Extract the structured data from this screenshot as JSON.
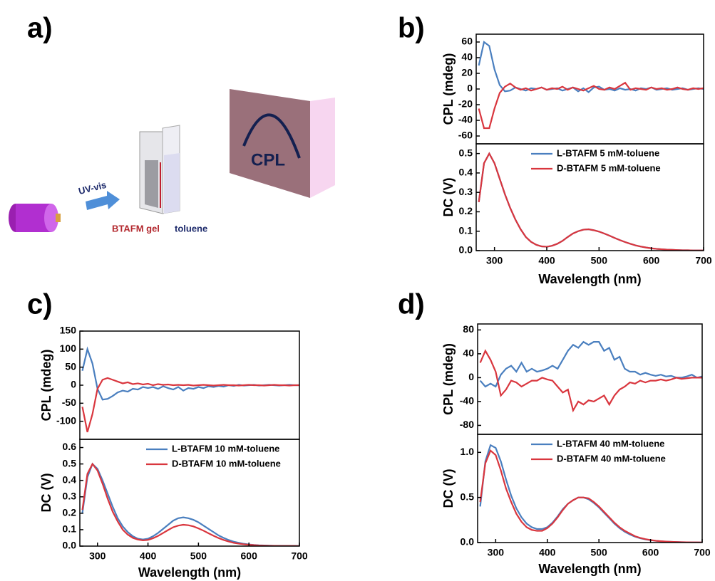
{
  "diagram": {
    "arrow_label": "UV-vis",
    "gel_label": "BTAFM gel",
    "solvent_label": "toluene",
    "screen_label": "CPL",
    "panel_label": "a)"
  },
  "chart_data": [
    {
      "type": "line",
      "label": "b)",
      "ylabel": "CPL (mdeg)",
      "xlim": [
        265,
        700
      ],
      "ylim": [
        -70,
        70
      ],
      "yticks": [
        -60,
        -40,
        -20,
        0,
        20,
        40,
        60
      ],
      "x": [
        270,
        280,
        290,
        300,
        310,
        320,
        330,
        340,
        350,
        360,
        370,
        380,
        390,
        400,
        410,
        420,
        430,
        440,
        450,
        460,
        470,
        480,
        490,
        500,
        510,
        520,
        530,
        540,
        550,
        560,
        570,
        580,
        590,
        600,
        610,
        620,
        630,
        640,
        650,
        660,
        670,
        680,
        690,
        700
      ],
      "series": [
        {
          "name": "L-BTAFM 5 mM-toluene",
          "color": "#4a7fbf",
          "values": [
            30,
            60,
            55,
            25,
            5,
            -3,
            -2,
            2,
            0,
            -2,
            1,
            0,
            2,
            -1,
            0,
            1,
            -2,
            0,
            2,
            -3,
            1,
            -4,
            2,
            3,
            -1,
            0,
            -2,
            1,
            -1,
            0,
            -2,
            1,
            0,
            2,
            -1,
            0,
            1,
            -1,
            0,
            1,
            -1,
            0,
            1,
            0
          ]
        },
        {
          "name": "D-BTAFM 5 mM-toluene",
          "color": "#d9363e",
          "values": [
            -25,
            -50,
            -50,
            -25,
            -5,
            3,
            7,
            2,
            -1,
            1,
            -2,
            0,
            2,
            -1,
            1,
            0,
            3,
            -1,
            2,
            0,
            -2,
            1,
            4,
            0,
            -1,
            2,
            0,
            4,
            8,
            -1,
            1,
            0,
            -1,
            2,
            0,
            1,
            -1,
            0,
            2,
            0,
            -1,
            1,
            0,
            1
          ]
        }
      ]
    },
    {
      "type": "line",
      "ylabel": "DC (V)",
      "xlabel": "Wavelength (nm)",
      "legend": "upper right",
      "xlim": [
        265,
        700
      ],
      "ylim": [
        0,
        0.55
      ],
      "xticks": [
        300,
        400,
        500,
        600,
        700
      ],
      "yticks": [
        {
          "value": 0,
          "label": "0.0"
        },
        0.1,
        0.2,
        0.3,
        0.4,
        0.5
      ],
      "x": [
        270,
        280,
        290,
        300,
        310,
        320,
        330,
        340,
        350,
        360,
        370,
        380,
        390,
        400,
        410,
        420,
        430,
        440,
        450,
        460,
        470,
        480,
        490,
        500,
        510,
        520,
        530,
        540,
        550,
        560,
        570,
        580,
        590,
        600,
        610,
        620,
        630,
        640,
        650,
        660,
        670,
        680,
        690,
        700
      ],
      "series": [
        {
          "name": "L-BTAFM 5 mM-toluene",
          "color": "#4a7fbf",
          "values": [
            0.25,
            0.45,
            0.5,
            0.45,
            0.37,
            0.29,
            0.22,
            0.16,
            0.11,
            0.07,
            0.045,
            0.03,
            0.022,
            0.02,
            0.025,
            0.035,
            0.05,
            0.07,
            0.088,
            0.1,
            0.108,
            0.11,
            0.105,
            0.098,
            0.088,
            0.077,
            0.065,
            0.054,
            0.044,
            0.035,
            0.027,
            0.021,
            0.016,
            0.012,
            0.009,
            0.007,
            0.005,
            0.004,
            0.003,
            0.002,
            0.002,
            0.001,
            0.001,
            0.001
          ]
        },
        {
          "name": "D-BTAFM 5 mM-toluene",
          "color": "#d9363e",
          "values": [
            0.25,
            0.45,
            0.5,
            0.45,
            0.37,
            0.29,
            0.22,
            0.16,
            0.11,
            0.07,
            0.045,
            0.03,
            0.022,
            0.02,
            0.025,
            0.035,
            0.05,
            0.07,
            0.088,
            0.1,
            0.108,
            0.11,
            0.105,
            0.098,
            0.088,
            0.077,
            0.065,
            0.054,
            0.044,
            0.035,
            0.027,
            0.021,
            0.016,
            0.012,
            0.009,
            0.007,
            0.005,
            0.004,
            0.003,
            0.002,
            0.002,
            0.001,
            0.001,
            0.001
          ]
        }
      ]
    },
    {
      "type": "line",
      "label": "c)",
      "ylabel": "CPL (mdeg)",
      "xlim": [
        265,
        700
      ],
      "ylim": [
        -150,
        150
      ],
      "yticks": [
        -100,
        -50,
        0,
        50,
        100,
        150
      ],
      "x": [
        270,
        280,
        290,
        300,
        310,
        320,
        330,
        340,
        350,
        360,
        370,
        380,
        390,
        400,
        410,
        420,
        430,
        440,
        450,
        460,
        470,
        480,
        490,
        500,
        510,
        520,
        530,
        540,
        550,
        560,
        570,
        580,
        590,
        600,
        610,
        620,
        630,
        640,
        650,
        660,
        670,
        680,
        690,
        700
      ],
      "series": [
        {
          "name": "L-BTAFM 10 mM-toluene",
          "color": "#4a7fbf",
          "values": [
            40,
            100,
            60,
            -10,
            -40,
            -38,
            -30,
            -20,
            -15,
            -18,
            -10,
            -12,
            -5,
            -8,
            -5,
            -10,
            -3,
            -8,
            -12,
            -5,
            -15,
            -8,
            -10,
            -5,
            -8,
            -3,
            -5,
            -2,
            -4,
            0,
            -2,
            1,
            -1,
            0,
            1,
            -1,
            0,
            1,
            0,
            -1,
            0,
            1,
            0,
            0
          ]
        },
        {
          "name": "D-BTAFM 10 mM-toluene",
          "color": "#d9363e",
          "values": [
            -60,
            -130,
            -80,
            -10,
            15,
            20,
            15,
            10,
            5,
            8,
            3,
            5,
            2,
            4,
            0,
            3,
            1,
            2,
            0,
            1,
            0,
            1,
            -1,
            0,
            1,
            0,
            -1,
            0,
            1,
            0,
            0,
            -1,
            0,
            1,
            0,
            0,
            -1,
            0,
            1,
            0,
            0,
            -1,
            0,
            0
          ]
        }
      ]
    },
    {
      "type": "line",
      "ylabel": "DC (V)",
      "xlabel": "Wavelength (nm)",
      "legend": "upper right",
      "xlim": [
        265,
        700
      ],
      "ylim": [
        0,
        0.65
      ],
      "xticks": [
        300,
        400,
        500,
        600,
        700
      ],
      "yticks": [
        {
          "value": 0,
          "label": "0.0"
        },
        0.1,
        0.2,
        0.3,
        0.4,
        0.5,
        0.6
      ],
      "x": [
        270,
        280,
        290,
        300,
        310,
        320,
        330,
        340,
        350,
        360,
        370,
        380,
        390,
        400,
        410,
        420,
        430,
        440,
        450,
        460,
        470,
        480,
        490,
        500,
        510,
        520,
        530,
        540,
        550,
        560,
        570,
        580,
        590,
        600,
        610,
        620,
        630,
        640,
        650,
        660,
        670,
        680,
        690,
        700
      ],
      "series": [
        {
          "name": "L-BTAFM 10 mM-toluene",
          "color": "#4a7fbf",
          "values": [
            0.2,
            0.42,
            0.5,
            0.47,
            0.4,
            0.32,
            0.24,
            0.17,
            0.12,
            0.085,
            0.06,
            0.045,
            0.04,
            0.045,
            0.06,
            0.08,
            0.105,
            0.13,
            0.155,
            0.17,
            0.175,
            0.17,
            0.16,
            0.145,
            0.125,
            0.105,
            0.085,
            0.065,
            0.05,
            0.037,
            0.027,
            0.02,
            0.014,
            0.01,
            0.007,
            0.005,
            0.004,
            0.003,
            0.002,
            0.002,
            0.001,
            0.001,
            0.001,
            0.001
          ]
        },
        {
          "name": "D-BTAFM 10 mM-toluene",
          "color": "#d9363e",
          "values": [
            0.22,
            0.44,
            0.5,
            0.46,
            0.38,
            0.29,
            0.21,
            0.15,
            0.1,
            0.07,
            0.05,
            0.04,
            0.035,
            0.038,
            0.048,
            0.062,
            0.08,
            0.098,
            0.115,
            0.125,
            0.13,
            0.127,
            0.12,
            0.108,
            0.094,
            0.078,
            0.063,
            0.049,
            0.037,
            0.028,
            0.02,
            0.015,
            0.011,
            0.008,
            0.006,
            0.004,
            0.003,
            0.002,
            0.002,
            0.001,
            0.001,
            0.001,
            0.001,
            0
          ]
        }
      ]
    },
    {
      "type": "line",
      "label": "d)",
      "ylabel": "CPL (mdeg)",
      "xlim": [
        265,
        700
      ],
      "ylim": [
        -95,
        90
      ],
      "yticks": [
        -80,
        -40,
        0,
        40,
        80
      ],
      "x": [
        270,
        280,
        290,
        300,
        310,
        320,
        330,
        340,
        350,
        360,
        370,
        380,
        390,
        400,
        410,
        420,
        430,
        440,
        450,
        460,
        470,
        480,
        490,
        500,
        510,
        520,
        530,
        540,
        550,
        560,
        570,
        580,
        590,
        600,
        610,
        620,
        630,
        640,
        650,
        660,
        670,
        680,
        690,
        700
      ],
      "series": [
        {
          "name": "L-BTAFM 40 mM-toluene",
          "color": "#4a7fbf",
          "values": [
            -5,
            -15,
            -10,
            -15,
            5,
            15,
            20,
            10,
            25,
            10,
            15,
            10,
            12,
            15,
            20,
            15,
            30,
            45,
            55,
            50,
            60,
            55,
            60,
            60,
            45,
            50,
            30,
            35,
            15,
            10,
            10,
            5,
            8,
            5,
            3,
            5,
            2,
            3,
            0,
            0,
            2,
            5,
            0,
            2
          ]
        },
        {
          "name": "D-BTAFM 40 mM-toluene",
          "color": "#d9363e",
          "values": [
            25,
            45,
            30,
            10,
            -30,
            -20,
            -5,
            -8,
            -15,
            -10,
            -5,
            -5,
            0,
            -3,
            -5,
            -15,
            -25,
            -20,
            -55,
            -40,
            -45,
            -38,
            -40,
            -35,
            -30,
            -45,
            -30,
            -20,
            -15,
            -8,
            -10,
            -5,
            -8,
            -5,
            -5,
            -3,
            -5,
            -3,
            0,
            -2,
            -1,
            0,
            0,
            0
          ]
        }
      ]
    },
    {
      "type": "line",
      "ylabel": "DC (V)",
      "xlabel": "Wavelength (nm)",
      "legend": "upper right",
      "xlim": [
        265,
        700
      ],
      "ylim": [
        0,
        1.2
      ],
      "xticks": [
        300,
        400,
        500,
        600,
        700
      ],
      "yticks": [
        {
          "value": 0,
          "label": "0.0"
        },
        0.5,
        {
          "value": 1,
          "label": "1.0"
        }
      ],
      "x": [
        270,
        280,
        290,
        300,
        310,
        320,
        330,
        340,
        350,
        360,
        370,
        380,
        390,
        400,
        410,
        420,
        430,
        440,
        450,
        460,
        470,
        480,
        490,
        500,
        510,
        520,
        530,
        540,
        550,
        560,
        570,
        580,
        590,
        600,
        610,
        620,
        630,
        640,
        650,
        660,
        670,
        680,
        690,
        700
      ],
      "series": [
        {
          "name": "L-BTAFM 40 mM-toluene",
          "color": "#4a7fbf",
          "values": [
            0.4,
            0.9,
            1.08,
            1.05,
            0.9,
            0.7,
            0.52,
            0.38,
            0.28,
            0.21,
            0.17,
            0.15,
            0.15,
            0.17,
            0.22,
            0.29,
            0.37,
            0.43,
            0.47,
            0.5,
            0.5,
            0.48,
            0.44,
            0.39,
            0.33,
            0.27,
            0.21,
            0.16,
            0.12,
            0.09,
            0.065,
            0.048,
            0.035,
            0.026,
            0.019,
            0.014,
            0.01,
            0.008,
            0.006,
            0.004,
            0.003,
            0.002,
            0.002,
            0.001
          ]
        },
        {
          "name": "D-BTAFM 40 mM-toluene",
          "color": "#d9363e",
          "values": [
            0.45,
            0.88,
            1.02,
            0.97,
            0.8,
            0.6,
            0.45,
            0.32,
            0.23,
            0.17,
            0.14,
            0.13,
            0.13,
            0.16,
            0.21,
            0.28,
            0.36,
            0.43,
            0.47,
            0.5,
            0.5,
            0.49,
            0.45,
            0.4,
            0.34,
            0.28,
            0.22,
            0.17,
            0.13,
            0.1,
            0.07,
            0.052,
            0.038,
            0.028,
            0.02,
            0.015,
            0.011,
            0.008,
            0.006,
            0.004,
            0.003,
            0.002,
            0.002,
            0.001
          ]
        }
      ]
    }
  ]
}
